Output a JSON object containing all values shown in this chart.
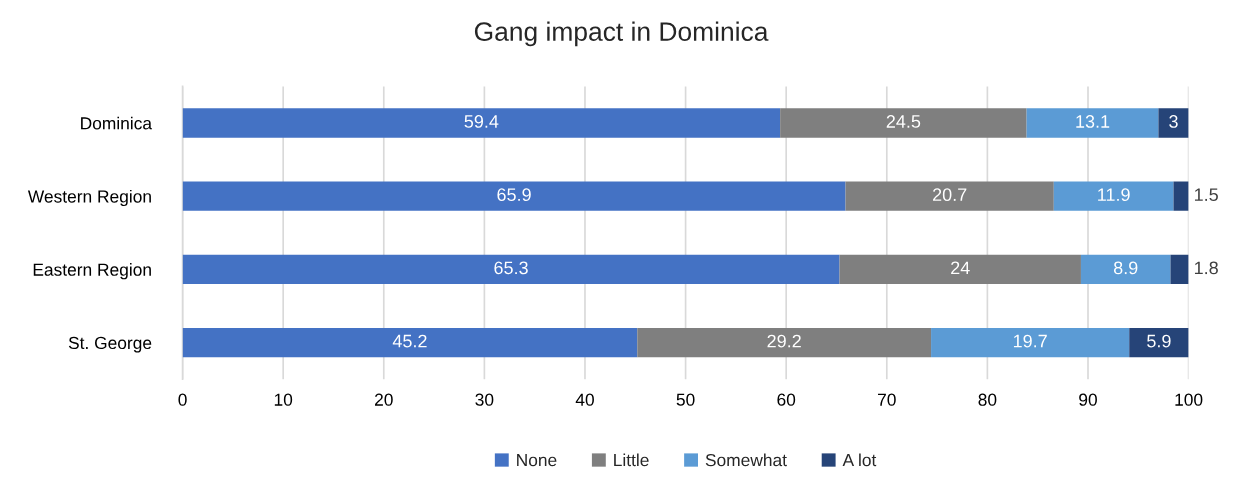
{
  "chart_data": {
    "type": "bar",
    "orientation": "horizontal",
    "stacked": true,
    "title": "Gang impact in Dominica",
    "categories": [
      "Dominica",
      "Western Region",
      "Eastern Region",
      "St. George"
    ],
    "series": [
      {
        "name": "None",
        "color": "#4472c4",
        "values": [
          59.4,
          65.9,
          65.3,
          45.2
        ]
      },
      {
        "name": "Little",
        "color": "#7f7f7f",
        "values": [
          24.5,
          20.7,
          24,
          29.2
        ]
      },
      {
        "name": "Somewhat",
        "color": "#5b9bd5",
        "values": [
          13.1,
          11.9,
          8.9,
          19.7
        ]
      },
      {
        "name": "A lot",
        "color": "#264478",
        "values": [
          3,
          1.5,
          1.8,
          5.9
        ]
      }
    ],
    "xlim": [
      0,
      100
    ],
    "xticks": [
      0,
      10,
      20,
      30,
      40,
      50,
      60,
      70,
      80,
      90,
      100
    ],
    "grid": "x",
    "legend": "bottom",
    "data_labels": true
  }
}
